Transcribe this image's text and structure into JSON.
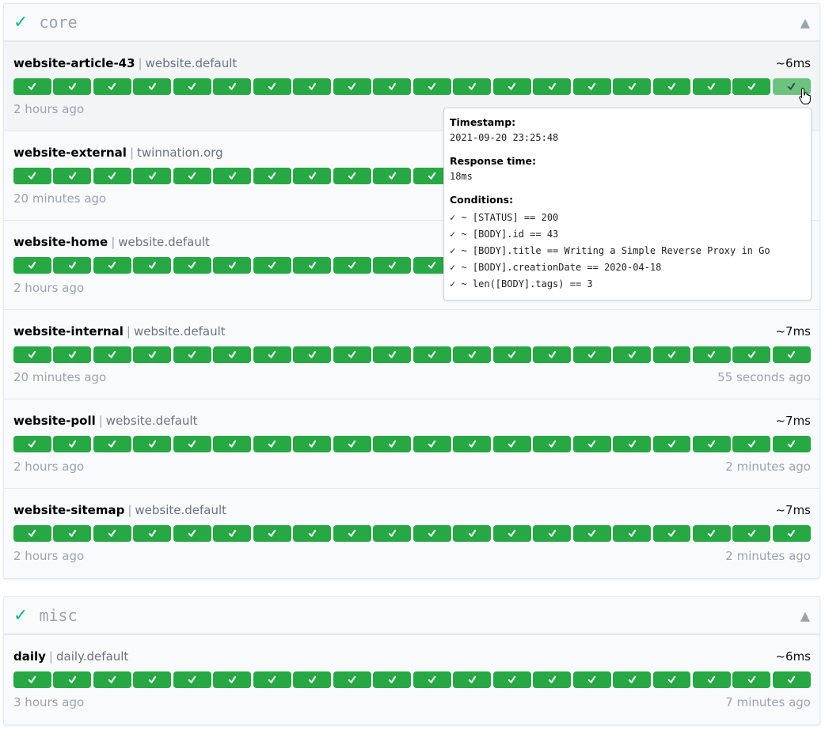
{
  "colors": {
    "success": "#28a745",
    "group_check": "#10b981"
  },
  "groups": [
    {
      "name": "core",
      "status_icon": "✓",
      "toggle_icon": "▲",
      "endpoints": [
        {
          "name": "website-article-43",
          "host": "website.default",
          "response_time": "~6ms",
          "oldest": "2 hours ago",
          "newest": "",
          "results": 20,
          "hovered_index": 19
        },
        {
          "name": "website-external",
          "host": "twinnation.org",
          "response_time": "",
          "oldest": "20 minutes ago",
          "newest": "",
          "results": 20
        },
        {
          "name": "website-home",
          "host": "website.default",
          "response_time": "",
          "oldest": "2 hours ago",
          "newest": "",
          "results": 20
        },
        {
          "name": "website-internal",
          "host": "website.default",
          "response_time": "~7ms",
          "oldest": "20 minutes ago",
          "newest": "55 seconds ago",
          "results": 20
        },
        {
          "name": "website-poll",
          "host": "website.default",
          "response_time": "~7ms",
          "oldest": "2 hours ago",
          "newest": "2 minutes ago",
          "results": 20
        },
        {
          "name": "website-sitemap",
          "host": "website.default",
          "response_time": "~7ms",
          "oldest": "2 hours ago",
          "newest": "2 minutes ago",
          "results": 20
        }
      ]
    },
    {
      "name": "misc",
      "status_icon": "✓",
      "toggle_icon": "▲",
      "endpoints": [
        {
          "name": "daily",
          "host": "daily.default",
          "response_time": "~6ms",
          "oldest": "3 hours ago",
          "newest": "7 minutes ago",
          "results": 20
        }
      ]
    }
  ],
  "tooltip": {
    "timestamp_label": "Timestamp:",
    "timestamp": "2021-09-20 23:25:48",
    "response_time_label": "Response time:",
    "response_time": "18ms",
    "conditions_label": "Conditions:",
    "conditions": [
      "✓ ~ [STATUS] == 200",
      "✓ ~ [BODY].id == 43",
      "✓ ~ [BODY].title == Writing a Simple Reverse Proxy in Go",
      "✓ ~ [BODY].creationDate == 2020-04-18",
      "✓ ~ len([BODY].tags) == 3"
    ]
  }
}
